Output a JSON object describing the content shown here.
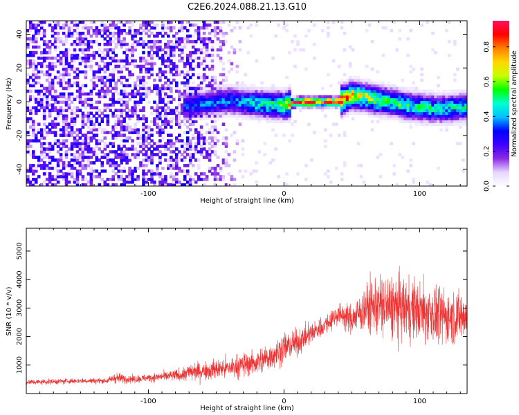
{
  "figure_title": "C2E6.2024.088.21.13.G10",
  "chart_data": [
    {
      "type": "heatmap",
      "title": "",
      "xlabel": "Height of straight line (km)",
      "ylabel": "Frequency (Hz)",
      "xlim": [
        -190,
        135
      ],
      "ylim": [
        -50,
        48
      ],
      "xticks": [
        -100,
        0,
        100
      ],
      "yticks": [
        -40,
        -20,
        0,
        20,
        40
      ],
      "colorbar": {
        "label": "Normalized spectral amplitude",
        "range": [
          0.0,
          0.95
        ],
        "ticks": [
          0.0,
          0.2,
          0.4,
          0.6,
          0.8
        ],
        "colormap": [
          "#ffffff",
          "#e6d6ff",
          "#8a2be2",
          "#3f00ff",
          "#0000ff",
          "#00bfff",
          "#00ffd0",
          "#00ff00",
          "#c8ff00",
          "#ffd700",
          "#ff8000",
          "#ff0000",
          "#ff1060"
        ]
      },
      "ridge": {
        "x": [
          -75,
          -60,
          -40,
          -20,
          0,
          10,
          20,
          30,
          40,
          45,
          50,
          60,
          70,
          80,
          90,
          100,
          110,
          120,
          130,
          135
        ],
        "frequency": [
          -3,
          -1,
          1,
          -1,
          -2,
          0,
          0,
          0,
          0,
          2,
          4,
          3,
          1,
          0,
          -2,
          -3,
          -4,
          -4,
          -3,
          -3
        ],
        "peak_amplitude": [
          0.3,
          0.35,
          0.35,
          0.45,
          0.55,
          0.85,
          0.9,
          0.9,
          0.9,
          0.75,
          0.7,
          0.6,
          0.55,
          0.5,
          0.5,
          0.45,
          0.45,
          0.45,
          0.45,
          0.45
        ]
      }
    },
    {
      "type": "line",
      "title": "",
      "xlabel": "Height of straight line (km)",
      "ylabel": "SNR (10 * v/v)",
      "xlim": [
        -190,
        135
      ],
      "ylim": [
        0,
        5800
      ],
      "xticks": [
        -100,
        0,
        100
      ],
      "yticks": [
        1000,
        2000,
        3000,
        4000,
        5000
      ],
      "series": [
        {
          "color": "#ee3333",
          "x": [
            -190,
            -170,
            -150,
            -130,
            -125,
            -110,
            -90,
            -75,
            -70,
            -60,
            -40,
            -20,
            -10,
            0,
            10,
            20,
            30,
            40,
            50,
            60,
            70,
            80,
            90,
            100,
            110,
            120,
            130,
            135
          ],
          "mean": [
            400,
            420,
            450,
            450,
            550,
            500,
            600,
            650,
            750,
            800,
            900,
            1100,
            1300,
            1600,
            1800,
            2100,
            2400,
            2800,
            2600,
            3000,
            3100,
            3000,
            3000,
            2900,
            2800,
            2700,
            2700,
            2700
          ],
          "spread": [
            150,
            150,
            150,
            150,
            300,
            200,
            250,
            350,
            500,
            500,
            600,
            700,
            750,
            800,
            700,
            600,
            550,
            600,
            800,
            1300,
            1700,
            1800,
            1700,
            1700,
            1600,
            1500,
            1400,
            1400
          ]
        }
      ]
    }
  ]
}
